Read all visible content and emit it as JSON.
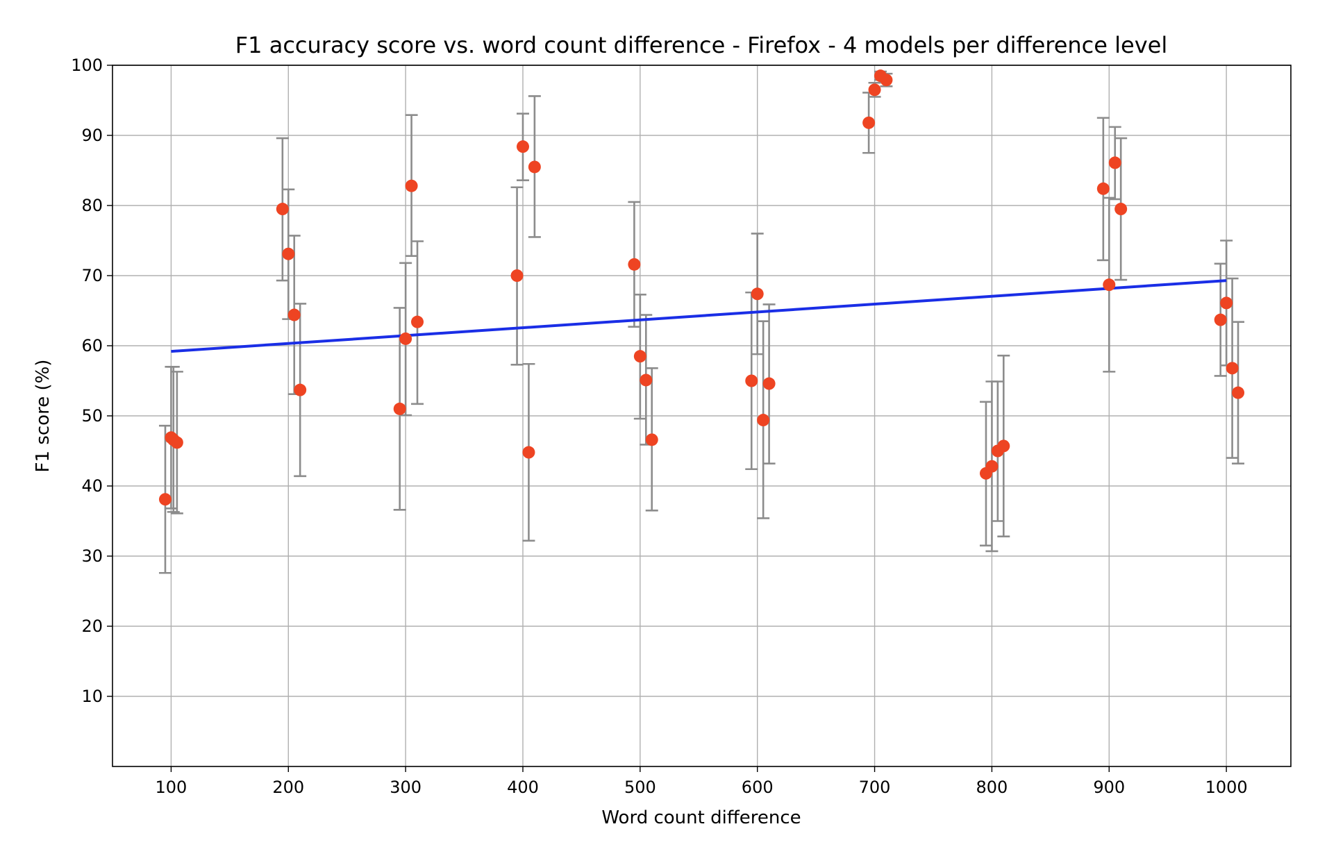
{
  "chart_data": {
    "type": "scatter",
    "title": "F1 accuracy score vs. word count difference - Firefox - 4 models per difference level",
    "xlabel": "Word count difference",
    "ylabel": "F1 score (%)",
    "xlim": [
      50,
      1055
    ],
    "ylim": [
      0,
      100
    ],
    "xticks": [
      "100",
      "200",
      "300",
      "400",
      "500",
      "600",
      "700",
      "800",
      "900",
      "1000"
    ],
    "yticks": [
      "10",
      "20",
      "30",
      "40",
      "50",
      "60",
      "70",
      "80",
      "90",
      "100"
    ],
    "grid": true,
    "colors": {
      "points": "#ee4422",
      "error_bars": "#8c8c8c",
      "trend_line": "#1a2ee6",
      "grid": "#b0b0b0"
    },
    "points": [
      {
        "x": 95,
        "y": 38.1,
        "err_low": 27.6,
        "err_high": 48.6
      },
      {
        "x": 100,
        "y": 46.9,
        "err_low": 36.8,
        "err_high": 57.0
      },
      {
        "x": 102,
        "y": 46.6,
        "err_low": 36.3,
        "err_high": 57.0
      },
      {
        "x": 105,
        "y": 46.2,
        "err_low": 36.1,
        "err_high": 56.3
      },
      {
        "x": 195,
        "y": 79.5,
        "err_low": 69.3,
        "err_high": 89.6
      },
      {
        "x": 200,
        "y": 73.1,
        "err_low": 63.8,
        "err_high": 82.3
      },
      {
        "x": 205,
        "y": 64.4,
        "err_low": 53.1,
        "err_high": 75.7
      },
      {
        "x": 210,
        "y": 53.7,
        "err_low": 41.4,
        "err_high": 66.0
      },
      {
        "x": 295,
        "y": 51.0,
        "err_low": 36.6,
        "err_high": 65.4
      },
      {
        "x": 300,
        "y": 61.0,
        "err_low": 50.1,
        "err_high": 71.8
      },
      {
        "x": 305,
        "y": 82.8,
        "err_low": 72.8,
        "err_high": 92.9
      },
      {
        "x": 310,
        "y": 63.4,
        "err_low": 51.7,
        "err_high": 74.9
      },
      {
        "x": 395,
        "y": 70.0,
        "err_low": 57.3,
        "err_high": 82.6
      },
      {
        "x": 400,
        "y": 88.4,
        "err_low": 83.6,
        "err_high": 93.1
      },
      {
        "x": 405,
        "y": 44.8,
        "err_low": 32.2,
        "err_high": 57.4
      },
      {
        "x": 410,
        "y": 85.5,
        "err_low": 75.5,
        "err_high": 95.6
      },
      {
        "x": 495,
        "y": 71.6,
        "err_low": 62.7,
        "err_high": 80.5
      },
      {
        "x": 500,
        "y": 58.5,
        "err_low": 49.6,
        "err_high": 67.3
      },
      {
        "x": 505,
        "y": 55.1,
        "err_low": 45.9,
        "err_high": 64.4
      },
      {
        "x": 510,
        "y": 46.6,
        "err_low": 36.5,
        "err_high": 56.8
      },
      {
        "x": 595,
        "y": 55.0,
        "err_low": 42.4,
        "err_high": 67.6
      },
      {
        "x": 600,
        "y": 67.4,
        "err_low": 58.8,
        "err_high": 76.0
      },
      {
        "x": 605,
        "y": 49.4,
        "err_low": 35.4,
        "err_high": 63.5
      },
      {
        "x": 610,
        "y": 54.6,
        "err_low": 43.2,
        "err_high": 65.9
      },
      {
        "x": 695,
        "y": 91.8,
        "err_low": 87.5,
        "err_high": 96.1
      },
      {
        "x": 700,
        "y": 96.5,
        "err_low": 95.5,
        "err_high": 97.5
      },
      {
        "x": 705,
        "y": 98.5,
        "err_low": 97.9,
        "err_high": 99.1
      },
      {
        "x": 710,
        "y": 97.9,
        "err_low": 97.0,
        "err_high": 98.8
      },
      {
        "x": 795,
        "y": 41.8,
        "err_low": 31.5,
        "err_high": 52.0
      },
      {
        "x": 800,
        "y": 42.8,
        "err_low": 30.7,
        "err_high": 54.9
      },
      {
        "x": 805,
        "y": 45.0,
        "err_low": 35.0,
        "err_high": 54.9
      },
      {
        "x": 810,
        "y": 45.7,
        "err_low": 32.8,
        "err_high": 58.6
      },
      {
        "x": 895,
        "y": 82.4,
        "err_low": 72.2,
        "err_high": 92.5
      },
      {
        "x": 900,
        "y": 68.7,
        "err_low": 56.3,
        "err_high": 81.1
      },
      {
        "x": 905,
        "y": 86.1,
        "err_low": 80.9,
        "err_high": 91.2
      },
      {
        "x": 910,
        "y": 79.5,
        "err_low": 69.4,
        "err_high": 89.6
      },
      {
        "x": 995,
        "y": 63.7,
        "err_low": 55.7,
        "err_high": 71.7
      },
      {
        "x": 1000,
        "y": 66.1,
        "err_low": 57.2,
        "err_high": 75.0
      },
      {
        "x": 1005,
        "y": 56.8,
        "err_low": 44.0,
        "err_high": 69.6
      },
      {
        "x": 1010,
        "y": 53.3,
        "err_low": 43.2,
        "err_high": 63.4
      }
    ],
    "trend_line": {
      "x": [
        100,
        1000
      ],
      "y": [
        59.2,
        69.3
      ]
    }
  }
}
